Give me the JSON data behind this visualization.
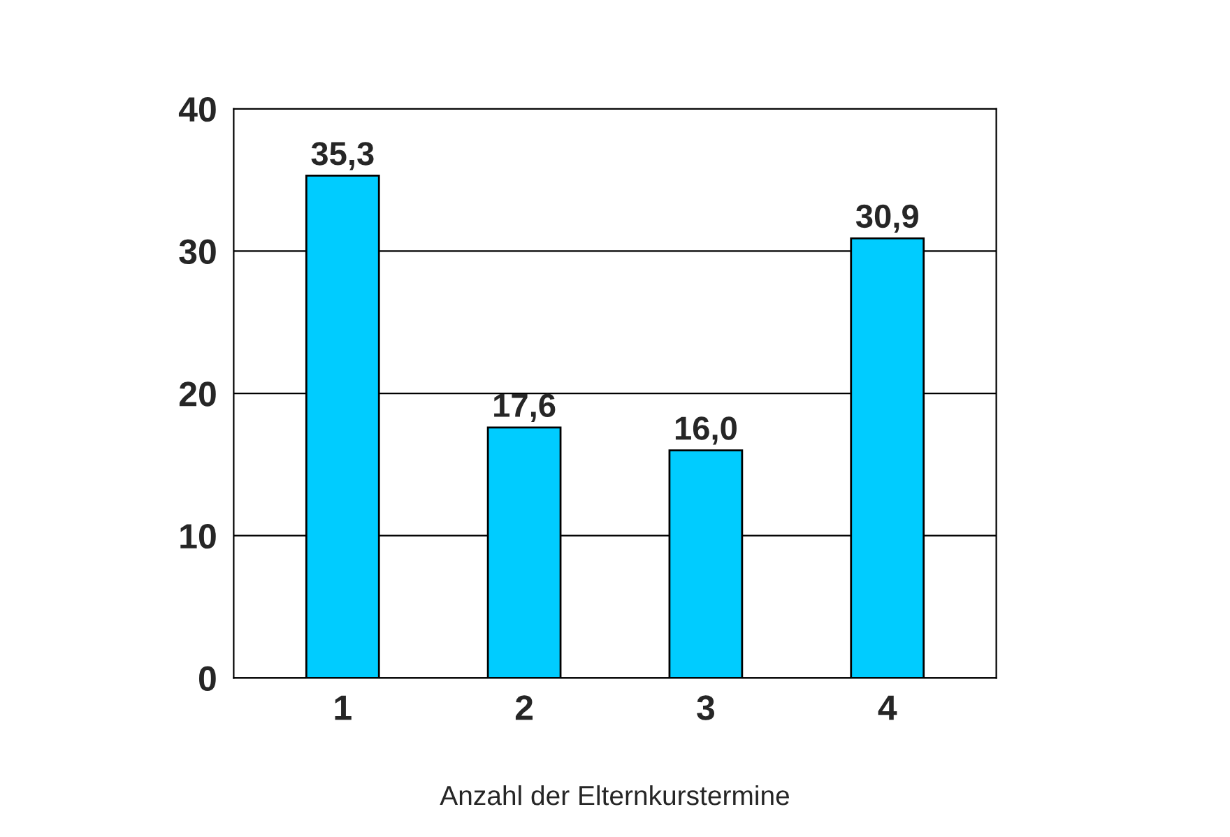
{
  "chart_data": {
    "type": "bar",
    "xlabel": "Anzahl der Elternkurstermine",
    "categories": [
      "1",
      "2",
      "3",
      "4"
    ],
    "values": [
      35.3,
      17.6,
      16.0,
      30.9
    ],
    "value_labels": [
      "35,3",
      "17,6",
      "16,0",
      "30,9"
    ],
    "color": "#00ccff",
    "ylim": [
      0,
      40
    ],
    "yticks": [
      0,
      10,
      20,
      30,
      40
    ],
    "grid": "y"
  }
}
